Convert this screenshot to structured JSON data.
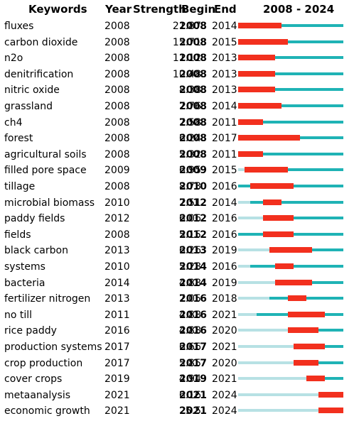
{
  "chart_data": {
    "type": "table",
    "columns": {
      "keyword": "Keywords",
      "year": "Year",
      "strength": "Strength",
      "begin": "Begin",
      "end": "End",
      "range": "2008 - 2024"
    },
    "axis": {
      "start": 2008,
      "end": 2024
    },
    "colors": {
      "burst": "#f2301e",
      "active": "#1fb3b5",
      "inactive": "#b7e1e4"
    },
    "rows": [
      {
        "keyword": "fluxes",
        "year": 2008,
        "strength": "21.87",
        "begin": 2008,
        "end": 2014
      },
      {
        "keyword": "carbon dioxide",
        "year": 2008,
        "strength": "15.71",
        "begin": 2008,
        "end": 2015
      },
      {
        "keyword": "n2o",
        "year": 2008,
        "strength": "11.12",
        "begin": 2008,
        "end": 2013
      },
      {
        "keyword": "denitrification",
        "year": 2008,
        "strength": "10.48",
        "begin": 2008,
        "end": 2013
      },
      {
        "keyword": "nitric oxide",
        "year": 2008,
        "strength": "8.38",
        "begin": 2008,
        "end": 2013
      },
      {
        "keyword": "grassland",
        "year": 2008,
        "strength": "7.76",
        "begin": 2008,
        "end": 2014
      },
      {
        "keyword": "ch4",
        "year": 2008,
        "strength": "7.58",
        "begin": 2008,
        "end": 2011
      },
      {
        "keyword": "forest",
        "year": 2008,
        "strength": "6.24",
        "begin": 2008,
        "end": 2017
      },
      {
        "keyword": "agricultural soils",
        "year": 2008,
        "strength": "5.32",
        "begin": 2008,
        "end": 2011
      },
      {
        "keyword": "filled pore space",
        "year": 2009,
        "strength": "6.95",
        "begin": 2009,
        "end": 2015
      },
      {
        "keyword": "tillage",
        "year": 2008,
        "strength": "8.73",
        "begin": 2010,
        "end": 2016
      },
      {
        "keyword": "microbial biomass",
        "year": 2010,
        "strength": "7.51",
        "begin": 2012,
        "end": 2014
      },
      {
        "keyword": "paddy fields",
        "year": 2012,
        "strength": "6.06",
        "begin": 2012,
        "end": 2016
      },
      {
        "keyword": "fields",
        "year": 2008,
        "strength": "5.15",
        "begin": 2012,
        "end": 2016
      },
      {
        "keyword": "black carbon",
        "year": 2013,
        "strength": "6.26",
        "begin": 2013,
        "end": 2019
      },
      {
        "keyword": "systems",
        "year": 2010,
        "strength": "5.28",
        "begin": 2014,
        "end": 2016
      },
      {
        "keyword": "bacteria",
        "year": 2014,
        "strength": "4.88",
        "begin": 2014,
        "end": 2019
      },
      {
        "keyword": "fertilizer nitrogen",
        "year": 2013,
        "strength": "7.05",
        "begin": 2016,
        "end": 2018
      },
      {
        "keyword": "no till",
        "year": 2011,
        "strength": "4.88",
        "begin": 2016,
        "end": 2021
      },
      {
        "keyword": "rice paddy",
        "year": 2016,
        "strength": "4.88",
        "begin": 2016,
        "end": 2020
      },
      {
        "keyword": "production systems",
        "year": 2017,
        "strength": "6.66",
        "begin": 2017,
        "end": 2021
      },
      {
        "keyword": "crop production",
        "year": 2017,
        "strength": "5.85",
        "begin": 2017,
        "end": 2020
      },
      {
        "keyword": "cover crops",
        "year": 2019,
        "strength": "4.94",
        "begin": 2019,
        "end": 2021
      },
      {
        "keyword": "metaanalysis",
        "year": 2021,
        "strength": "6.16",
        "begin": 2021,
        "end": 2024
      },
      {
        "keyword": "economic growth",
        "year": 2021,
        "strength": "5.5",
        "begin": 2021,
        "end": 2024
      }
    ]
  }
}
